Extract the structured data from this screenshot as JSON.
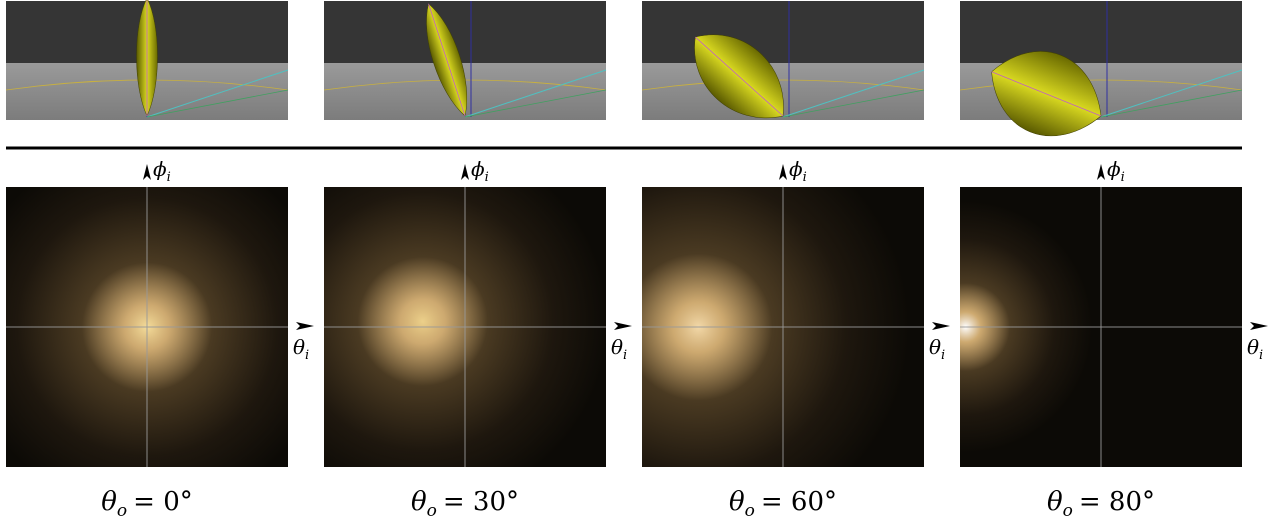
{
  "figure": {
    "phi_label": {
      "symbol": "ϕ",
      "sub": "i"
    },
    "theta_label": {
      "symbol": "θ",
      "sub": "i"
    },
    "panels": [
      {
        "caption": {
          "symbol": "θ",
          "sub": "o",
          "rest": "= 0°"
        }
      },
      {
        "caption": {
          "symbol": "θ",
          "sub": "o",
          "rest": "= 30°"
        }
      },
      {
        "caption": {
          "symbol": "θ",
          "sub": "o",
          "rest": "= 60°"
        }
      },
      {
        "caption": {
          "symbol": "θ",
          "sub": "o",
          "rest": "= 80°"
        }
      }
    ]
  }
}
